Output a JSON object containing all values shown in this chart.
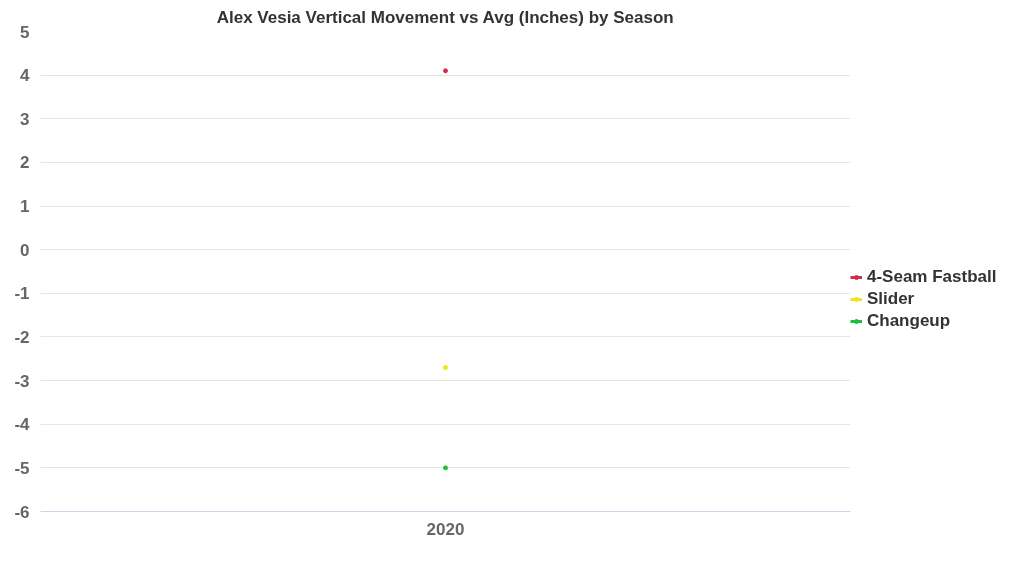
{
  "chart_data": {
    "type": "line",
    "title": "Alex Vesia Vertical Movement vs Avg (Inches) by Season",
    "categories": [
      "2020"
    ],
    "series": [
      {
        "name": "4-Seam Fastball",
        "color": "#d22d49",
        "values": [
          4.1
        ]
      },
      {
        "name": "Slider",
        "color": "#eee716",
        "values": [
          -2.7
        ]
      },
      {
        "name": "Changeup",
        "color": "#1dbe3a",
        "values": [
          -5.0
        ]
      }
    ],
    "ylim": [
      -6,
      5
    ],
    "yticks": [
      -6,
      -5,
      -4,
      -3,
      -2,
      -1,
      0,
      1,
      2,
      3,
      4,
      5
    ],
    "grid": "y",
    "legend": "right",
    "marker": "circle"
  }
}
